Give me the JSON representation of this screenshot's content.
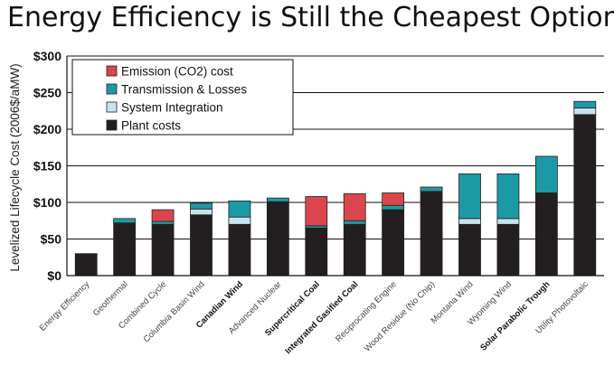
{
  "title": "Energy Efficiency is Still the Cheapest Option",
  "chart_data": {
    "type": "bar",
    "stacked": true,
    "title": "Energy Efficiency is Still the Cheapest Option",
    "xlabel": "",
    "ylabel": "Levelized Lifecycle Cost (2006$/aMW)",
    "ylim": [
      0,
      300
    ],
    "yticks": [
      0,
      50,
      100,
      150,
      200,
      250,
      300
    ],
    "ytick_labels": [
      "$0",
      "$50",
      "$100",
      "$150",
      "$200",
      "$250",
      "$300"
    ],
    "grid": true,
    "legend_position": "top-left",
    "categories": [
      "Energy Efficiency",
      "Geothermal",
      "Combined Cycle",
      "Columbia Basin Wind",
      "Canadian Wind",
      "Advanced Nuclear",
      "Supercritical Coal",
      "Integrated Gasified Coal",
      "Reciprocating Engine",
      "Wood Residue (No Chip)",
      "Montana Wind",
      "Wyoming Wind",
      "Solar Parabolic Trough",
      "Utility Photovoltaic"
    ],
    "bold_categories": [
      "Canadian Wind",
      "Supercritical Coal",
      "Integrated Gasified Coal",
      "Solar Parabolic Trough"
    ],
    "series": [
      {
        "name": "Plant costs",
        "color": "#231f20",
        "values": [
          30,
          72,
          70,
          83,
          70,
          101,
          65,
          70,
          90,
          115,
          70,
          70,
          113,
          220
        ]
      },
      {
        "name": "System Integration",
        "color": "#c6e3ee",
        "values": [
          0,
          0,
          0,
          8,
          10,
          0,
          0,
          0,
          0,
          0,
          8,
          8,
          0,
          9
        ]
      },
      {
        "name": "Transmission & Losses",
        "color": "#1b9aa6",
        "values": [
          0,
          6,
          4,
          8,
          22,
          5,
          3,
          5,
          6,
          6,
          61,
          61,
          50,
          9
        ]
      },
      {
        "name": "Emission (CO2) cost",
        "color": "#d9474c",
        "values": [
          0,
          0,
          16,
          0,
          0,
          0,
          40,
          37,
          17,
          0,
          0,
          0,
          0,
          0
        ]
      }
    ],
    "legend_order": [
      "Emission (CO2) cost",
      "Transmission & Losses",
      "System Integration",
      "Plant costs"
    ]
  }
}
